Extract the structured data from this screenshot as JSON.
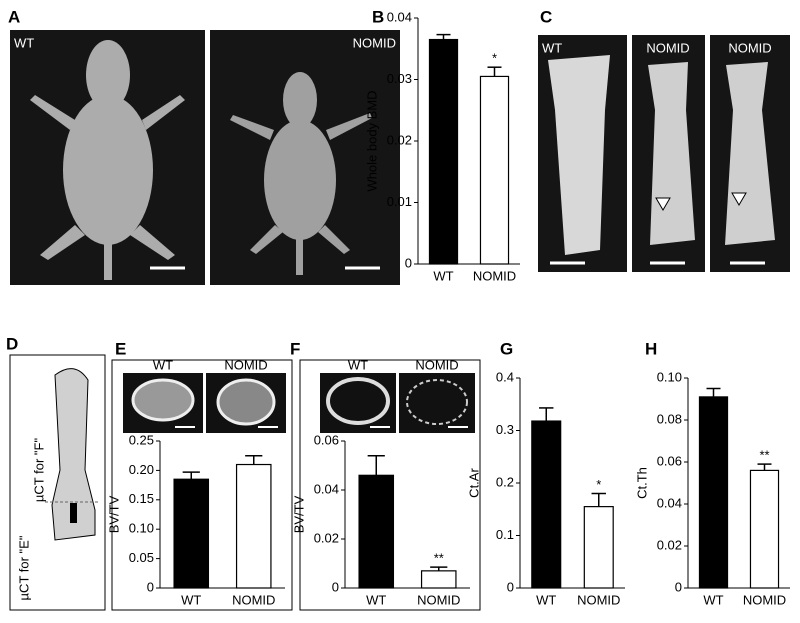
{
  "figure": {
    "panel_labels": [
      "A",
      "B",
      "C",
      "D",
      "E",
      "F",
      "G",
      "H"
    ],
    "images_a": [
      "WT",
      "NOMID"
    ],
    "images_c": [
      "WT",
      "NOMID",
      "NOMID"
    ],
    "images_e": [
      "WT",
      "NOMID"
    ],
    "images_f": [
      "WT",
      "NOMID"
    ],
    "diagram": [
      "µCT for \"F\"",
      "µCT for \"E\""
    ]
  },
  "chart_data": [
    {
      "type": "bar",
      "ylabel": "Whole body BMD",
      "categories": [
        "WT",
        "NOMID"
      ],
      "values": [
        0.0365,
        0.0305
      ],
      "errors": [
        0.0008,
        0.0015
      ],
      "colors": [
        "#000000",
        "#ffffff"
      ],
      "ylim": [
        0,
        0.04
      ],
      "yticks": [
        0,
        0.01,
        0.02,
        0.03,
        0.04
      ],
      "annotation": "*"
    },
    {
      "type": "bar",
      "ylabel": "BV/TV",
      "categories": [
        "WT",
        "NOMID"
      ],
      "values": [
        0.185,
        0.21
      ],
      "errors": [
        0.012,
        0.015
      ],
      "colors": [
        "#000000",
        "#ffffff"
      ],
      "ylim": [
        0,
        0.25
      ],
      "yticks": [
        0,
        0.05,
        {
          "value": 0.1,
          "label": "0.10"
        },
        0.15,
        {
          "value": 0.2,
          "label": "0.20"
        },
        0.25
      ]
    },
    {
      "type": "bar",
      "ylabel": "BV/TV",
      "categories": [
        "WT",
        "NOMID"
      ],
      "values": [
        0.046,
        0.007
      ],
      "errors": [
        0.008,
        0.0015
      ],
      "colors": [
        "#000000",
        "#ffffff"
      ],
      "ylim": [
        0,
        0.06
      ],
      "yticks": [
        0,
        0.02,
        0.04,
        0.06
      ],
      "annotation": "**"
    },
    {
      "type": "bar",
      "ylabel": "Ct.Ar",
      "categories": [
        "WT",
        "NOMID"
      ],
      "values": [
        0.318,
        0.155
      ],
      "errors": [
        0.025,
        0.025
      ],
      "colors": [
        "#000000",
        "#ffffff"
      ],
      "ylim": [
        0,
        0.4
      ],
      "yticks": [
        0,
        0.1,
        0.2,
        0.3,
        0.4
      ],
      "annotation": "*"
    },
    {
      "type": "bar",
      "ylabel": "Ct.Th",
      "categories": [
        "WT",
        "NOMID"
      ],
      "values": [
        0.091,
        0.056
      ],
      "errors": [
        0.004,
        0.003
      ],
      "colors": [
        "#000000",
        "#ffffff"
      ],
      "ylim": [
        0,
        0.1
      ],
      "yticks": [
        0,
        0.02,
        0.04,
        0.06,
        0.08,
        {
          "value": 0.1,
          "label": "0.10"
        }
      ],
      "annotation": "**"
    }
  ]
}
